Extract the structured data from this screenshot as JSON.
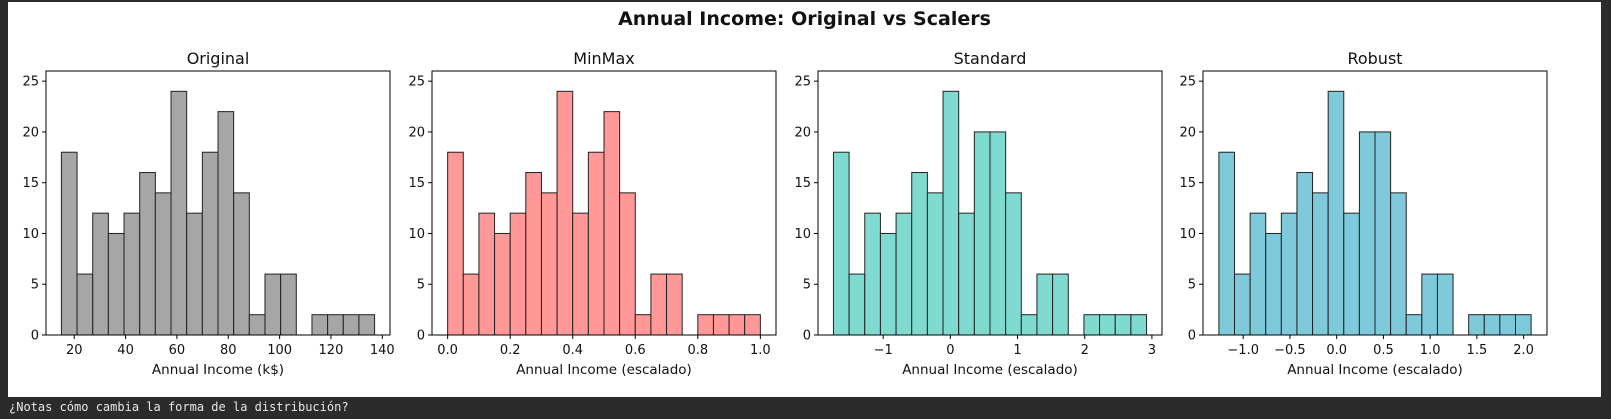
{
  "figure": {
    "suptitle": "Annual Income: Original vs Scalers"
  },
  "console": {
    "output_text": "¿Notas cómo cambia la forma de la distribución?"
  },
  "chart_data": [
    {
      "type": "histogram",
      "title": "Original",
      "xlabel": "Annual Income (k$)",
      "ylabel": "",
      "bar_color": "#a6a6a6",
      "edge_color": "#222222",
      "bin_range": [
        15,
        137
      ],
      "xlim": [
        9,
        143
      ],
      "ylim": [
        0,
        26
      ],
      "xticks": [
        20,
        40,
        60,
        80,
        100,
        120,
        140
      ],
      "xtick_labels": [
        "20",
        "40",
        "60",
        "80",
        "100",
        "120",
        "140"
      ],
      "yticks": [
        0,
        5,
        10,
        15,
        20,
        25
      ],
      "counts": [
        18,
        6,
        12,
        10,
        12,
        16,
        14,
        24,
        12,
        18,
        22,
        14,
        2,
        6,
        6,
        0,
        2,
        2,
        2,
        2
      ]
    },
    {
      "type": "histogram",
      "title": "MinMax",
      "xlabel": "Annual Income (escalado)",
      "ylabel": "",
      "bar_color": "#ff9896",
      "edge_color": "#222222",
      "bin_range": [
        0,
        1
      ],
      "xlim": [
        -0.05,
        1.05
      ],
      "ylim": [
        0,
        26
      ],
      "xticks": [
        0.0,
        0.2,
        0.4,
        0.6,
        0.8,
        1.0
      ],
      "xtick_labels": [
        "0.0",
        "0.2",
        "0.4",
        "0.6",
        "0.8",
        "1.0"
      ],
      "yticks": [
        0,
        5,
        10,
        15,
        20,
        25
      ],
      "counts": [
        18,
        6,
        12,
        10,
        12,
        16,
        14,
        24,
        12,
        18,
        22,
        14,
        2,
        6,
        6,
        0,
        2,
        2,
        2,
        2
      ]
    },
    {
      "type": "histogram",
      "title": "Standard",
      "xlabel": "Annual Income (escalado)",
      "ylabel": "",
      "bar_color": "#7fdbd0",
      "edge_color": "#222222",
      "bin_range": [
        -1.74,
        2.92
      ],
      "xlim": [
        -1.97,
        3.15
      ],
      "ylim": [
        0,
        26
      ],
      "xticks": [
        -1,
        0,
        1,
        2,
        3
      ],
      "xtick_labels": [
        "−1",
        "0",
        "1",
        "2",
        "3"
      ],
      "yticks": [
        0,
        5,
        10,
        15,
        20,
        25
      ],
      "counts": [
        18,
        6,
        12,
        10,
        12,
        16,
        14,
        24,
        12,
        20,
        20,
        14,
        2,
        6,
        6,
        0,
        2,
        2,
        2,
        2
      ]
    },
    {
      "type": "histogram",
      "title": "Robust",
      "xlabel": "Annual Income (escalado)",
      "ylabel": "",
      "bar_color": "#7ecadb",
      "edge_color": "#222222",
      "bin_range": [
        -1.26,
        2.08
      ],
      "xlim": [
        -1.43,
        2.25
      ],
      "ylim": [
        0,
        26
      ],
      "xticks": [
        -1.0,
        -0.5,
        0.0,
        0.5,
        1.0,
        1.5,
        2.0
      ],
      "xtick_labels": [
        "−1.0",
        "−0.5",
        "0.0",
        "0.5",
        "1.0",
        "1.5",
        "2.0"
      ],
      "yticks": [
        0,
        5,
        10,
        15,
        20,
        25
      ],
      "counts": [
        18,
        6,
        12,
        10,
        12,
        16,
        14,
        24,
        12,
        20,
        20,
        14,
        2,
        6,
        6,
        0,
        2,
        2,
        2,
        2
      ]
    }
  ]
}
